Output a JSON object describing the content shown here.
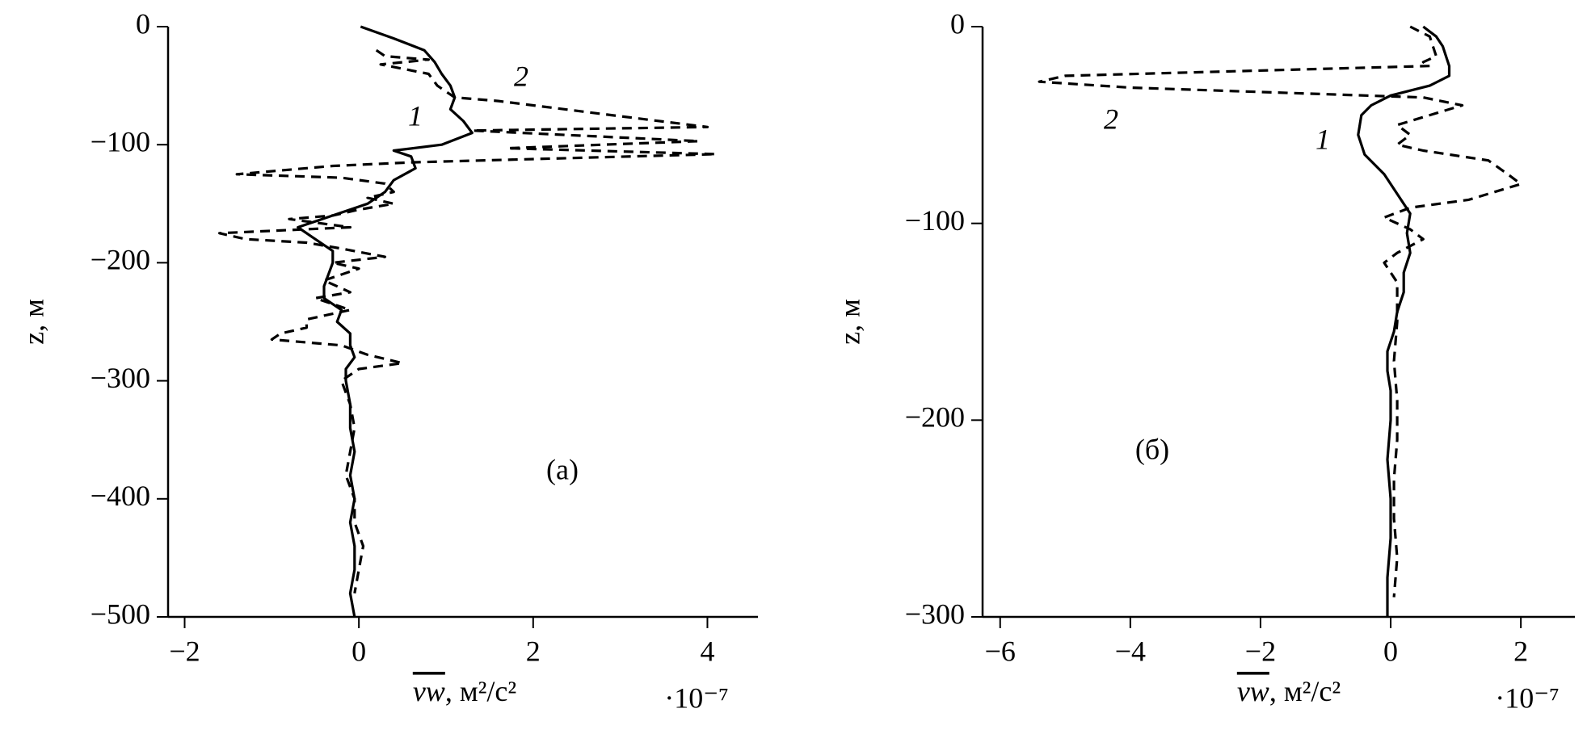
{
  "chart_data": [
    {
      "type": "line",
      "panel_label": "(а)",
      "y_label": "z, м",
      "x_label_symbol": "vw",
      "x_label_units": ", м²/с²",
      "x_multiplier": "·10⁻⁷",
      "xlim": [
        -2.19,
        4.58
      ],
      "ylim": [
        -500,
        0
      ],
      "xticks": [
        {
          "value": -2,
          "label": "−2"
        },
        0,
        2,
        4
      ],
      "yticks": [
        0,
        {
          "value": -100,
          "label": "−100"
        },
        {
          "value": -200,
          "label": "−200"
        },
        {
          "value": -300,
          "label": "−300"
        },
        {
          "value": -400,
          "label": "−400"
        },
        {
          "value": -500,
          "label": "−500"
        }
      ],
      "series": [
        {
          "name": "1",
          "color": "#000000",
          "dash": false,
          "z": [
            0,
            -10,
            -20,
            -30,
            -40,
            -50,
            -60,
            -70,
            -80,
            -90,
            -100,
            -105,
            -110,
            -120,
            -130,
            -140,
            -150,
            -160,
            -170,
            -180,
            -190,
            -200,
            -210,
            -220,
            -230,
            -240,
            -250,
            -260,
            -270,
            -280,
            -290,
            -300,
            -320,
            -340,
            -360,
            -380,
            -400,
            -420,
            -440,
            -460,
            -480,
            -500
          ],
          "values": [
            0.02,
            0.4,
            0.75,
            0.87,
            0.95,
            1.05,
            1.1,
            1.05,
            1.2,
            1.3,
            0.95,
            0.4,
            0.6,
            0.65,
            0.4,
            0.3,
            0.1,
            -0.3,
            -0.7,
            -0.5,
            -0.3,
            -0.3,
            -0.35,
            -0.4,
            -0.4,
            -0.2,
            -0.25,
            -0.1,
            -0.1,
            -0.05,
            -0.15,
            -0.15,
            -0.1,
            -0.1,
            -0.05,
            -0.1,
            -0.05,
            -0.1,
            -0.05,
            -0.05,
            -0.1,
            -0.05
          ]
        },
        {
          "name": "2",
          "color": "#000000",
          "dash": true,
          "z": [
            -20,
            -25,
            -28,
            -32,
            -40,
            -50,
            -60,
            -63,
            -75,
            -85,
            -88,
            -97,
            -103,
            -108,
            -115,
            -118,
            -125,
            -128,
            -133,
            -140,
            -145,
            -150,
            -155,
            -160,
            -163,
            -170,
            -175,
            -180,
            -183,
            -188,
            -195,
            -200,
            -205,
            -215,
            -225,
            -230,
            -240,
            -248,
            -255,
            -260,
            -265,
            -270,
            -278,
            -285,
            -290,
            -300,
            -320,
            -340,
            -360,
            -380,
            -400,
            -420,
            -440,
            -460,
            -480
          ],
          "values": [
            0.2,
            0.3,
            0.8,
            0.25,
            0.8,
            0.9,
            1.1,
            1.6,
            2.9,
            4.0,
            1.3,
            3.9,
            1.7,
            4.1,
            0.6,
            -0.3,
            -1.4,
            -0.2,
            0.3,
            0.4,
            0.1,
            0.4,
            0.0,
            -0.3,
            -0.8,
            -0.1,
            -1.6,
            -1.3,
            -0.6,
            -0.2,
            0.3,
            -0.3,
            0.0,
            -0.4,
            -0.1,
            -0.5,
            -0.1,
            -0.6,
            -0.6,
            -0.9,
            -1.0,
            -0.2,
            0.1,
            0.5,
            0.0,
            -0.2,
            -0.1,
            -0.05,
            -0.1,
            -0.15,
            -0.05,
            -0.05,
            0.05,
            0.0,
            -0.05
          ]
        }
      ]
    },
    {
      "type": "line",
      "panel_label": "(б)",
      "y_label": "z, м",
      "x_label_symbol": "vw",
      "x_label_units": ", м²/с²",
      "x_multiplier": "·10⁻⁷",
      "xlim": [
        -6.27,
        2.83
      ],
      "ylim": [
        -300,
        0
      ],
      "xticks": [
        {
          "value": -6,
          "label": "−6"
        },
        {
          "value": -4,
          "label": "−4"
        },
        {
          "value": -2,
          "label": "−2"
        },
        0,
        2
      ],
      "yticks": [
        0,
        {
          "value": -100,
          "label": "−100"
        },
        {
          "value": -200,
          "label": "−200"
        },
        {
          "value": -300,
          "label": "−300"
        }
      ],
      "series": [
        {
          "name": "1",
          "color": "#000000",
          "dash": false,
          "z": [
            0,
            -5,
            -10,
            -15,
            -20,
            -25,
            -30,
            -35,
            -40,
            -45,
            -55,
            -65,
            -75,
            -85,
            -95,
            -105,
            -115,
            -125,
            -135,
            -145,
            -155,
            -165,
            -175,
            -185,
            -200,
            -220,
            -240,
            -260,
            -280,
            -300
          ],
          "values": [
            0.5,
            0.7,
            0.8,
            0.85,
            0.9,
            0.9,
            0.6,
            0.0,
            -0.3,
            -0.45,
            -0.5,
            -0.4,
            -0.1,
            0.1,
            0.3,
            0.25,
            0.3,
            0.2,
            0.2,
            0.1,
            0.05,
            -0.05,
            -0.05,
            0.0,
            0.0,
            -0.05,
            0.0,
            0.0,
            -0.05,
            -0.05
          ]
        },
        {
          "name": "2",
          "color": "#000000",
          "dash": true,
          "z": [
            0,
            -5,
            -15,
            -18,
            -20,
            -25,
            -28,
            -31,
            -36,
            -40,
            -45,
            -50,
            -55,
            -60,
            -63,
            -68,
            -75,
            -80,
            -88,
            -92,
            -97,
            -103,
            -108,
            -115,
            -120,
            -130,
            -150,
            -170,
            -190,
            -210,
            -230,
            -250,
            -270,
            -290
          ],
          "values": [
            0.3,
            0.6,
            0.7,
            0.5,
            0.6,
            -5.0,
            -5.4,
            -4.0,
            0.5,
            1.1,
            0.6,
            0.1,
            0.3,
            0.1,
            0.5,
            1.5,
            1.8,
            2.0,
            1.2,
            0.3,
            -0.1,
            0.3,
            0.5,
            0.1,
            -0.1,
            0.1,
            0.1,
            0.05,
            0.1,
            0.1,
            0.05,
            0.05,
            0.1,
            0.05
          ]
        }
      ]
    }
  ]
}
